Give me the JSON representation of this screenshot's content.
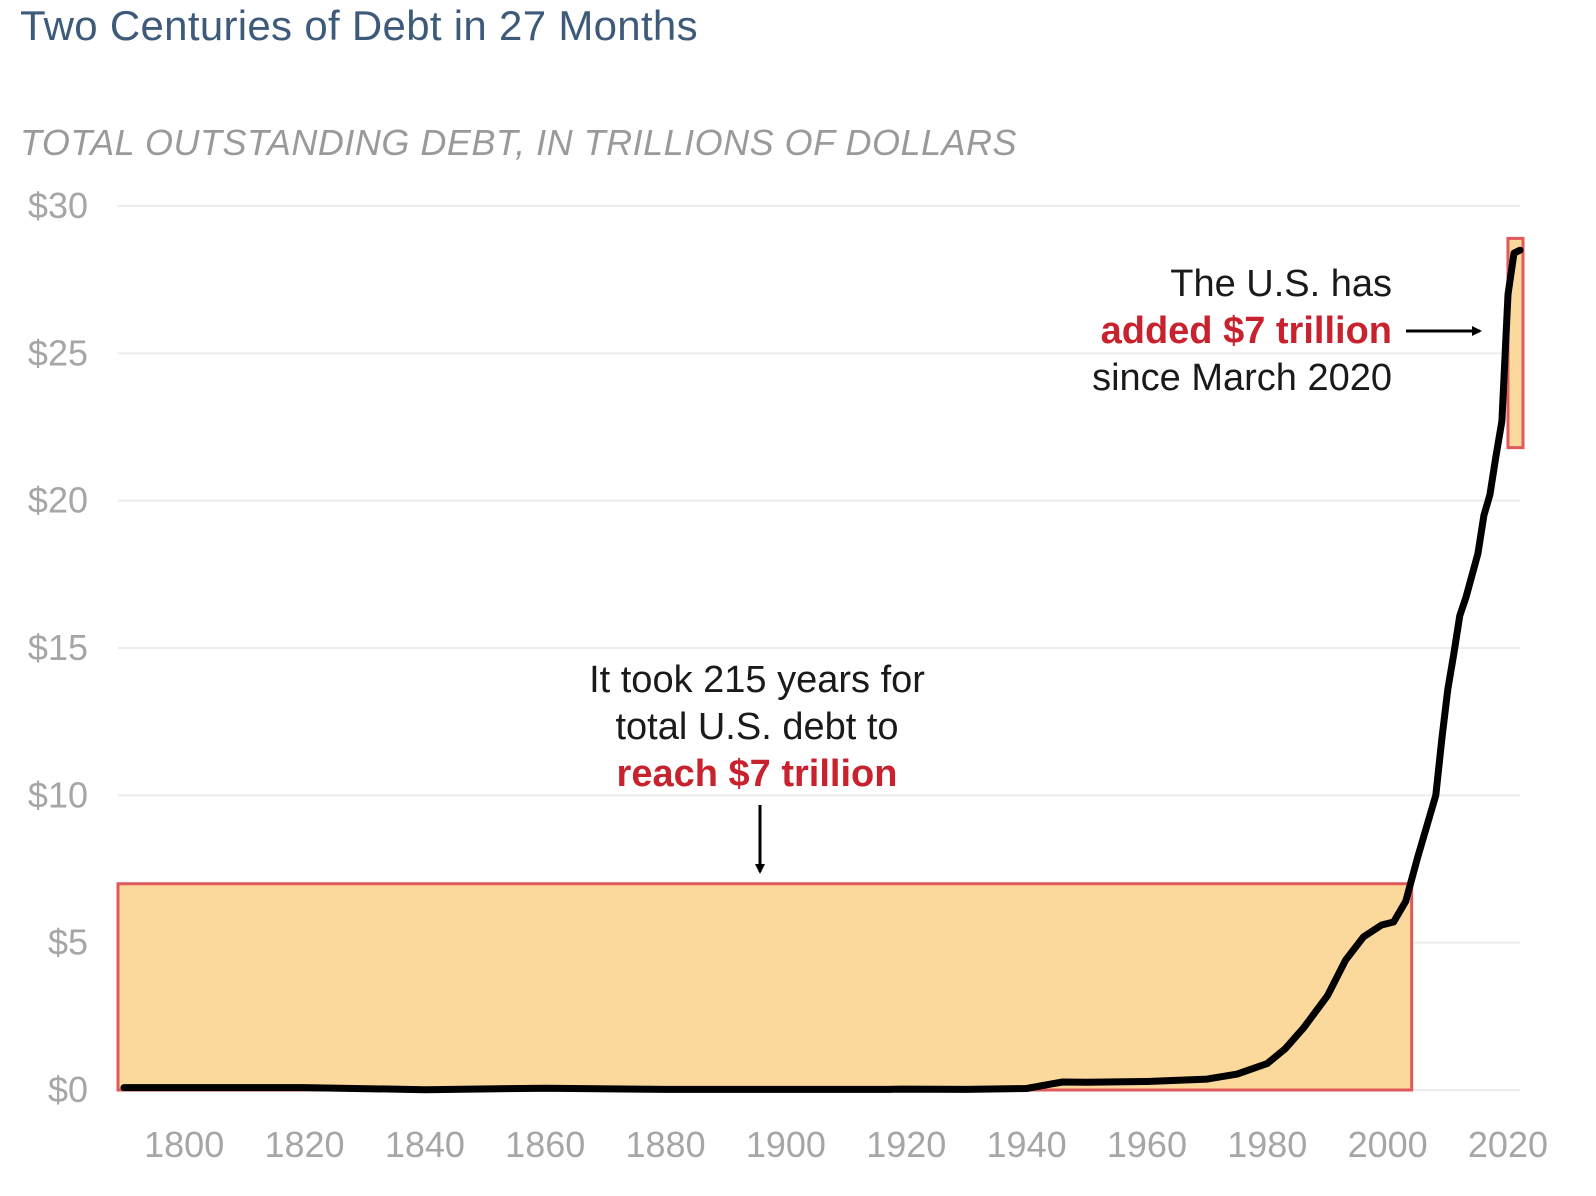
{
  "chart_data": {
    "type": "line",
    "title": "Two Centuries of Debt in 27 Months",
    "subtitle": "TOTAL OUTSTANDING DEBT, IN TRILLIONS OF DOLLARS",
    "xlabel": "",
    "ylabel": "",
    "xlim": [
      1789,
      2022
    ],
    "ylim": [
      0,
      30
    ],
    "x_ticks": [
      1800,
      1820,
      1840,
      1860,
      1880,
      1900,
      1920,
      1940,
      1960,
      1980,
      2000,
      2020
    ],
    "x_tick_labels": [
      "1800",
      "1820",
      "1840",
      "1860",
      "1880",
      "1900",
      "1920",
      "1940",
      "1960",
      "1980",
      "2000",
      "2020"
    ],
    "y_ticks": [
      0,
      5,
      10,
      15,
      20,
      25,
      30
    ],
    "y_tick_labels": [
      "$0",
      "$5",
      "$10",
      "$15",
      "$20",
      "$25",
      "$30"
    ],
    "grid": "horizontal",
    "series": [
      {
        "color": "#000000",
        "x": [
          1790,
          1800,
          1820,
          1840,
          1860,
          1880,
          1900,
          1917,
          1919,
          1930,
          1940,
          1944,
          1946,
          1950,
          1960,
          1970,
          1975,
          1980,
          1983,
          1986,
          1990,
          1993,
          1996,
          1999,
          2001,
          2003,
          2005,
          2008,
          2009,
          2010,
          2011,
          2012,
          2013,
          2015,
          2016,
          2017,
          2018,
          2019,
          2020,
          2021,
          2022
        ],
        "y": [
          0.08,
          0.08,
          0.08,
          0.01,
          0.06,
          0.02,
          0.02,
          0.02,
          0.03,
          0.02,
          0.05,
          0.2,
          0.27,
          0.26,
          0.29,
          0.37,
          0.54,
          0.9,
          1.4,
          2.1,
          3.2,
          4.4,
          5.2,
          5.6,
          5.7,
          6.4,
          7.9,
          10.0,
          11.9,
          13.6,
          14.8,
          16.1,
          16.7,
          18.2,
          19.5,
          20.2,
          21.5,
          22.7,
          27.0,
          28.4,
          28.5
        ]
      }
    ],
    "highlights": [
      {
        "x_range": [
          1789,
          2004
        ],
        "y_range": [
          0,
          7
        ],
        "fill": "#fbd89b",
        "stroke": "#e05a5a"
      },
      {
        "x_range": [
          2020,
          2022.5
        ],
        "y_range": [
          21.8,
          28.9
        ],
        "fill": "#fbd89b",
        "stroke": "#e05a5a"
      }
    ],
    "annotations": [
      {
        "lines": [
          {
            "text": "It took 215 years for",
            "emphasis": false
          },
          {
            "text": "total U.S. debt to",
            "emphasis": false
          },
          {
            "text": "reach $7 trillion",
            "emphasis": true
          }
        ],
        "arrow": "down"
      },
      {
        "lines": [
          {
            "text": "The U.S. has",
            "emphasis": false
          },
          {
            "text": "added $7 trillion",
            "emphasis": true
          },
          {
            "text": "since March 2020",
            "emphasis": false
          }
        ],
        "arrow": "right"
      }
    ],
    "colors": {
      "line": "#000000",
      "highlight_fill": "#fbd89b",
      "highlight_stroke": "#e05a5a",
      "emphasis_text": "#c8222e",
      "tick_text": "#a6a6a6",
      "title": "#3d5a7a"
    }
  }
}
